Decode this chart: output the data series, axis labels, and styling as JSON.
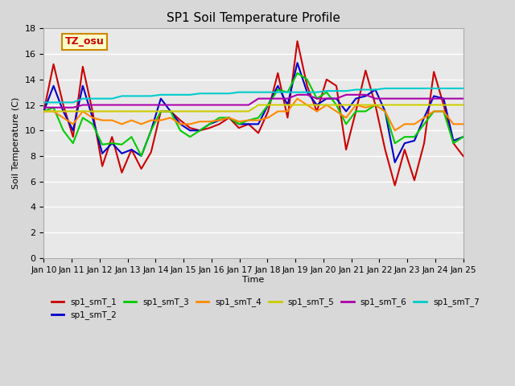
{
  "title": "SP1 Soil Temperature Profile",
  "xlabel": "Time",
  "ylabel": "Soil Temperature (C)",
  "xlim": [
    0,
    15
  ],
  "ylim": [
    0,
    18
  ],
  "yticks": [
    0,
    2,
    4,
    6,
    8,
    10,
    12,
    14,
    16,
    18
  ],
  "xtick_labels": [
    "Jan 10",
    "Jan 11",
    "Jan 12",
    "Jan 13",
    "Jan 14",
    "Jan 15",
    "Jan 16",
    "Jan 17",
    "Jan 18",
    "Jan 19",
    "Jan 20",
    "Jan 21",
    "Jan 22",
    "Jan 23",
    "Jan 24",
    "Jan 25"
  ],
  "annotation_text": "TZ_osu",
  "annotation_color": "#cc0000",
  "annotation_bg": "#ffffcc",
  "annotation_border": "#cc8800",
  "series_colors": [
    "#cc0000",
    "#0000cc",
    "#00cc00",
    "#ff8800",
    "#cccc00",
    "#aa00aa",
    "#00cccc"
  ],
  "series_names": [
    "sp1_smT_1",
    "sp1_smT_2",
    "sp1_smT_3",
    "sp1_smT_4",
    "sp1_smT_5",
    "sp1_smT_6",
    "sp1_smT_7"
  ],
  "bg_color": "#e8e8e8",
  "plot_bg": "#e8e8e8",
  "grid_color": "#ffffff",
  "sp1_smT_1": [
    11.5,
    15.2,
    12.0,
    9.5,
    15.0,
    11.5,
    7.2,
    9.5,
    6.7,
    8.5,
    7.0,
    8.3,
    11.5,
    11.5,
    10.8,
    10.2,
    10.0,
    10.2,
    10.5,
    11.0,
    10.2,
    10.5,
    9.8,
    11.5,
    14.5,
    11.0,
    17.0,
    13.5,
    11.5,
    14.0,
    13.5,
    8.5,
    11.5,
    14.7,
    12.0,
    8.5,
    5.7,
    8.5,
    6.1,
    9.0,
    14.6,
    12.0,
    9.0,
    8.0
  ],
  "sp1_smT_2": [
    11.5,
    13.5,
    11.5,
    10.0,
    13.5,
    11.0,
    8.2,
    9.0,
    8.2,
    8.5,
    8.0,
    10.0,
    12.5,
    11.5,
    10.5,
    10.0,
    10.0,
    10.5,
    10.8,
    11.0,
    10.5,
    10.5,
    10.5,
    12.0,
    13.5,
    12.0,
    15.3,
    13.0,
    12.0,
    12.5,
    12.5,
    11.5,
    12.5,
    12.7,
    13.2,
    11.5,
    7.5,
    9.0,
    9.2,
    11.0,
    12.7,
    12.5,
    9.2,
    9.5
  ],
  "sp1_smT_3": [
    11.5,
    11.8,
    10.0,
    9.0,
    11.0,
    10.5,
    8.9,
    9.0,
    8.9,
    9.5,
    8.0,
    10.0,
    11.5,
    11.5,
    10.0,
    9.5,
    10.0,
    10.5,
    11.0,
    11.0,
    10.5,
    10.8,
    11.0,
    12.0,
    13.2,
    13.0,
    14.5,
    14.0,
    12.5,
    13.0,
    12.0,
    10.5,
    11.5,
    11.5,
    12.0,
    11.5,
    9.0,
    9.5,
    9.5,
    10.5,
    11.5,
    11.5,
    9.0,
    9.5
  ],
  "sp1_smT_4": [
    11.5,
    11.5,
    11.0,
    10.5,
    11.5,
    11.0,
    10.8,
    10.8,
    10.5,
    10.8,
    10.5,
    10.8,
    10.8,
    11.0,
    10.5,
    10.5,
    10.7,
    10.7,
    10.8,
    11.0,
    10.7,
    10.8,
    10.8,
    11.0,
    11.5,
    11.5,
    12.5,
    12.0,
    11.5,
    12.0,
    11.5,
    11.0,
    12.0,
    11.8,
    12.0,
    11.5,
    10.0,
    10.5,
    10.5,
    11.0,
    11.5,
    11.5,
    10.5,
    10.5
  ],
  "sp1_smT_5": [
    11.5,
    11.5,
    11.5,
    11.5,
    11.5,
    11.5,
    11.5,
    11.5,
    11.5,
    11.5,
    11.5,
    11.5,
    11.5,
    11.5,
    11.5,
    11.5,
    11.5,
    11.5,
    11.5,
    11.5,
    11.5,
    11.5,
    12.0,
    12.0,
    12.0,
    12.0,
    12.0,
    12.0,
    12.0,
    12.0,
    12.0,
    12.0,
    12.0,
    12.0,
    12.0,
    12.0,
    12.0,
    12.0,
    12.0,
    12.0,
    12.0,
    12.0,
    12.0,
    12.0
  ],
  "sp1_smT_6": [
    11.8,
    11.8,
    11.8,
    11.8,
    12.0,
    12.0,
    12.0,
    12.0,
    12.0,
    12.0,
    12.0,
    12.0,
    12.0,
    12.0,
    12.0,
    12.0,
    12.0,
    12.0,
    12.0,
    12.0,
    12.0,
    12.0,
    12.5,
    12.5,
    12.5,
    12.5,
    12.8,
    12.8,
    12.5,
    12.5,
    12.5,
    12.8,
    12.8,
    12.8,
    12.5,
    12.5,
    12.5,
    12.5,
    12.5,
    12.5,
    12.5,
    12.5,
    12.5,
    12.5
  ],
  "sp1_smT_7": [
    12.2,
    12.2,
    12.2,
    12.2,
    12.5,
    12.5,
    12.5,
    12.5,
    12.7,
    12.7,
    12.7,
    12.7,
    12.8,
    12.8,
    12.8,
    12.8,
    12.9,
    12.9,
    12.9,
    12.9,
    13.0,
    13.0,
    13.0,
    13.0,
    13.0,
    13.0,
    13.0,
    13.0,
    13.0,
    13.1,
    13.1,
    13.1,
    13.2,
    13.2,
    13.2,
    13.3,
    13.3,
    13.3,
    13.3,
    13.3,
    13.3,
    13.3,
    13.3,
    13.3
  ]
}
